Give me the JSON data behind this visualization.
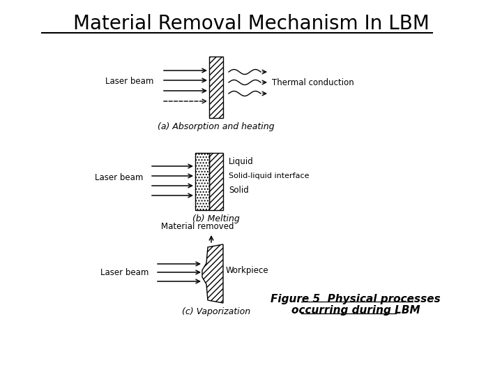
{
  "title": "Material Removal Mechanism In LBM",
  "figure_caption_line1": "Figure 5  Physical processes",
  "figure_caption_line2": "occurring during LBM",
  "bg_color": "#ffffff",
  "title_fontsize": 20,
  "caption_fontsize": 11
}
